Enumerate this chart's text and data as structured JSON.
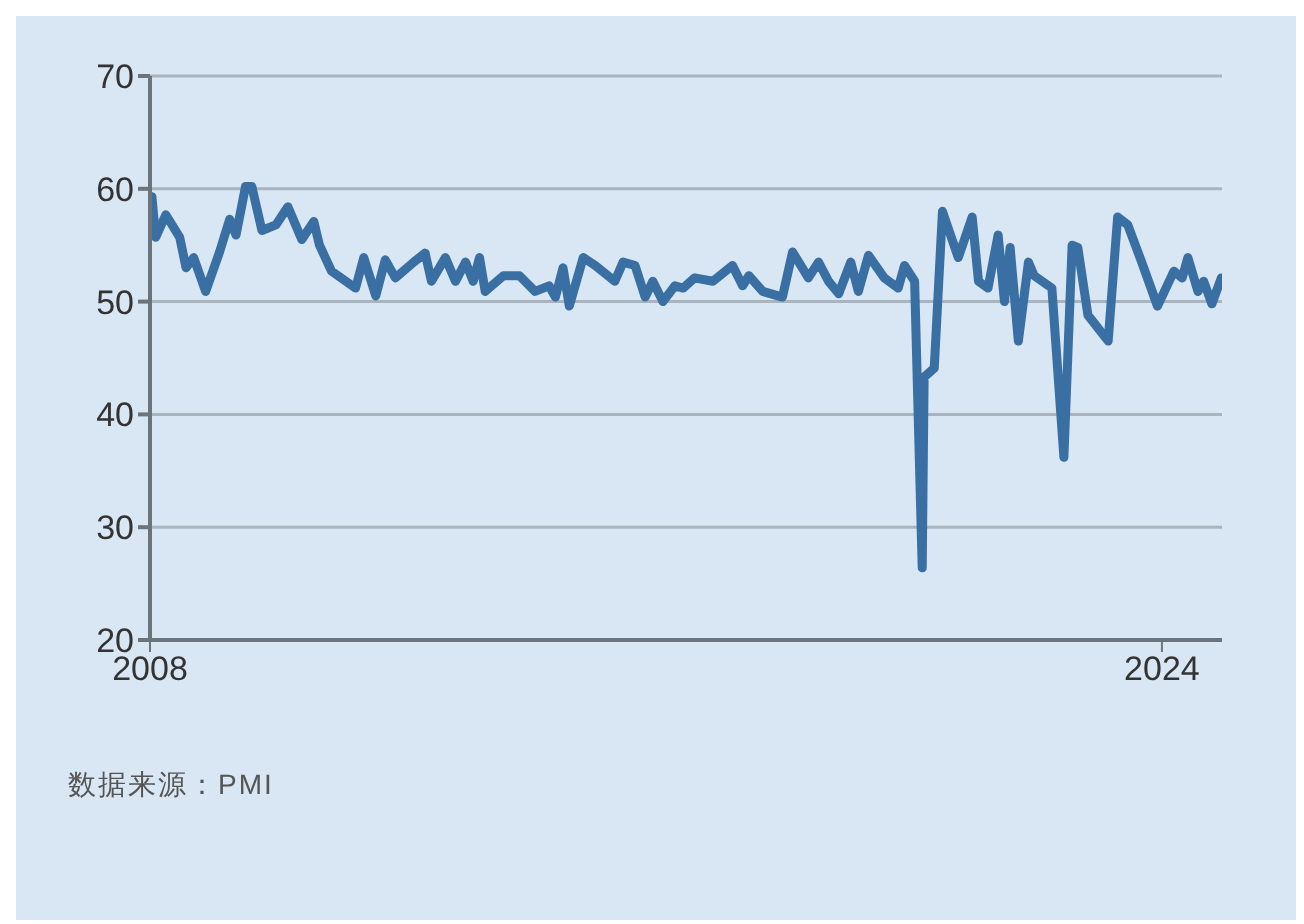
{
  "chart_data": {
    "type": "line",
    "x": [
      2008.03,
      2008.09,
      2008.25,
      2008.47,
      2008.57,
      2008.69,
      2008.88,
      2009.1,
      2009.26,
      2009.36,
      2009.51,
      2009.61,
      2009.77,
      2009.99,
      2010.18,
      2010.4,
      2010.59,
      2010.68,
      2010.87,
      2011.25,
      2011.38,
      2011.57,
      2011.72,
      2011.88,
      2012.17,
      2012.35,
      2012.45,
      2012.67,
      2012.83,
      2012.99,
      2013.11,
      2013.21,
      2013.3,
      2013.59,
      2013.84,
      2014.09,
      2014.31,
      2014.41,
      2014.53,
      2014.63,
      2014.85,
      2015.04,
      2015.35,
      2015.48,
      2015.67,
      2015.83,
      2015.95,
      2016.11,
      2016.3,
      2016.43,
      2016.61,
      2016.9,
      2017.21,
      2017.37,
      2017.47,
      2017.69,
      2018.0,
      2018.16,
      2018.41,
      2018.57,
      2018.73,
      2018.89,
      2019.08,
      2019.2,
      2019.36,
      2019.61,
      2019.83,
      2019.93,
      2020.09,
      2020.21,
      2020.24,
      2020.4,
      2020.53,
      2020.78,
      2021.0,
      2021.1,
      2021.25,
      2021.41,
      2021.51,
      2021.6,
      2021.73,
      2021.89,
      2021.98,
      2022.26,
      2022.45,
      2022.58,
      2022.67,
      2022.83,
      2023.15,
      2023.3,
      2023.46,
      2023.68,
      2023.93,
      2024.19,
      2024.32,
      2024.41,
      2024.57,
      2024.66,
      2024.79,
      2024.94
    ],
    "series": [
      {
        "color": "#3a6fa3",
        "values": [
          59.3,
          55.7,
          57.7,
          55.7,
          53.0,
          53.9,
          50.9,
          54.4,
          57.3,
          55.9,
          60.2,
          60.2,
          56.3,
          56.8,
          58.4,
          55.5,
          57.1,
          55.0,
          52.7,
          51.2,
          53.9,
          50.5,
          53.7,
          52.1,
          53.5,
          54.3,
          51.8,
          53.9,
          51.8,
          53.5,
          51.8,
          53.9,
          50.9,
          52.3,
          52.3,
          50.9,
          51.4,
          50.4,
          53.0,
          49.6,
          53.9,
          53.2,
          51.8,
          53.5,
          53.2,
          50.4,
          51.8,
          50.0,
          51.4,
          51.2,
          52.1,
          51.8,
          53.2,
          51.4,
          52.3,
          50.9,
          50.4,
          54.4,
          52.1,
          53.5,
          51.8,
          50.7,
          53.5,
          50.9,
          54.1,
          52.1,
          51.2,
          53.2,
          51.8,
          26.4,
          43.3,
          44.1,
          58.0,
          53.9,
          57.5,
          51.8,
          51.2,
          55.9,
          50.0,
          54.8,
          46.5,
          53.5,
          52.3,
          51.2,
          36.2,
          55.0,
          54.8,
          48.8,
          46.5,
          57.5,
          56.8,
          53.5,
          49.6,
          52.7,
          52.1,
          53.9,
          50.9,
          51.8,
          49.8,
          52.1
        ]
      }
    ],
    "xlim": [
      2008,
      2024.95
    ],
    "xticks": [
      2008,
      2024
    ],
    "ylim": [
      20,
      70
    ],
    "yticks": [
      20,
      30,
      40,
      50,
      60,
      70
    ],
    "grid": "y",
    "line_style": "solid",
    "marker": "none",
    "annotations": [
      "数据来源：PMI"
    ]
  }
}
